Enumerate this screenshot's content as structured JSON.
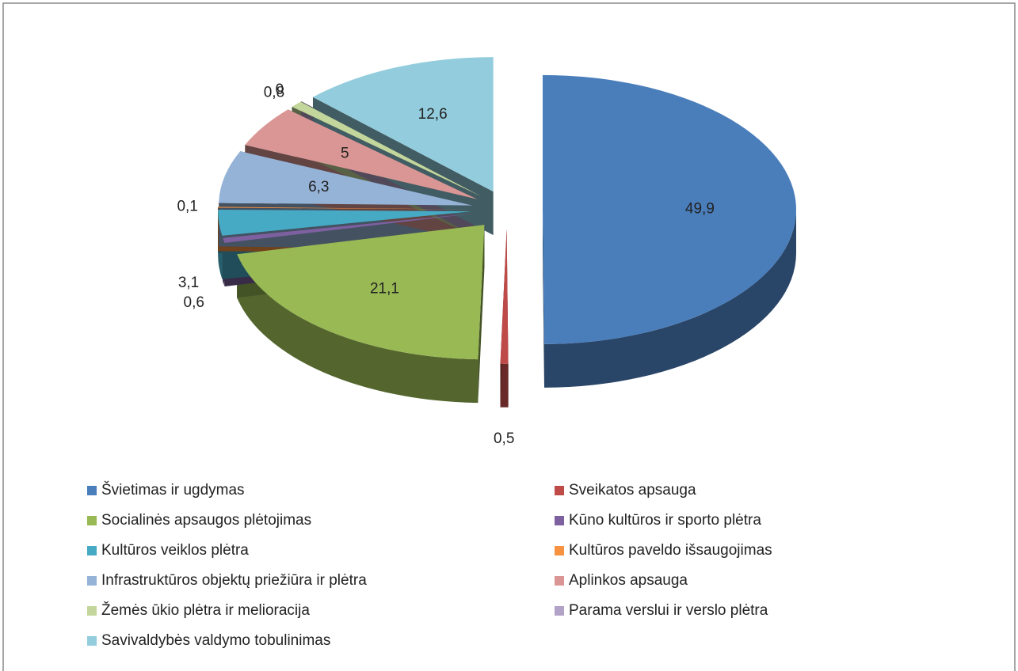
{
  "chart_data": {
    "type": "pie",
    "categories": [
      "Švietimas ir ugdymas",
      "Sveikatos apsauga",
      "Socialinės apsaugos plėtojimas",
      "Kūno kultūros ir sporto plėtra",
      "Kultūros veiklos plėtra",
      "Kultūros paveldo išsaugojimas",
      "Infrastruktūros objektų priežiūra ir plėtra",
      "Aplinkos apsauga",
      "Žemės ūkio plėtra ir melioracija",
      "Parama verslui ir verslo plėtra",
      "Savivaldybės valdymo tobulinimas"
    ],
    "values": [
      49.9,
      0.5,
      21.1,
      0.6,
      3.1,
      0.1,
      6.3,
      5,
      0.8,
      0,
      12.6
    ],
    "value_labels": [
      "49,9",
      "0,5",
      "21,1",
      "0,6",
      "3,1",
      "0,1",
      "6,3",
      "5",
      "0,8",
      "0",
      "12,6"
    ],
    "colors": [
      "#4a7ebb",
      "#be4b48",
      "#98b954",
      "#7d60a0",
      "#46aac5",
      "#f69240",
      "#95b3d7",
      "#d99694",
      "#c3d69b",
      "#b3a2c7",
      "#93cddd"
    ]
  }
}
